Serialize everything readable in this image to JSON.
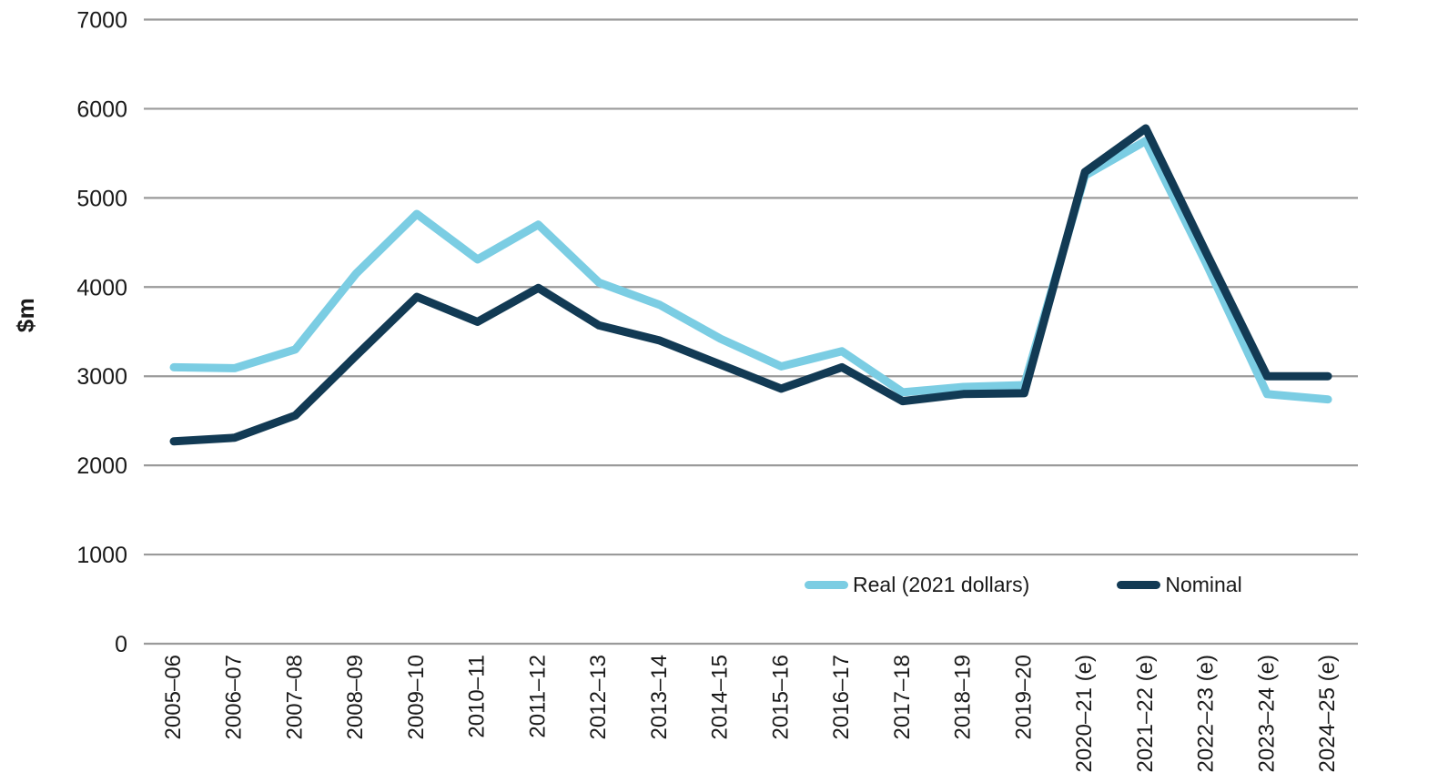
{
  "chart_data": {
    "type": "line",
    "title": "",
    "xlabel": "",
    "ylabel": "$m",
    "ylim": [
      0,
      7000
    ],
    "y_tick_interval": 1000,
    "yticks": [
      0,
      1000,
      2000,
      3000,
      4000,
      5000,
      6000,
      7000
    ],
    "y_tick_labels": [
      "0",
      "1000",
      "2000",
      "3000",
      "4000",
      "5000",
      "6000",
      "7000"
    ],
    "grid": "horizontal",
    "legend_position": "inside-bottom-right",
    "categories": [
      "2005–06",
      "2006–07",
      "2007–08",
      "2008–09",
      "2009–10",
      "2010–11",
      "2011–12",
      "2012–13",
      "2013–14",
      "2014–15",
      "2015–16",
      "2016–17",
      "2017–18",
      "2018–19",
      "2019–20",
      "2020–21 (e)",
      "2021–22 (e)",
      "2022–23 (e)",
      "2023–24 (e)",
      "2024–25 (e)"
    ],
    "series": [
      {
        "name": "Real (2021 dollars)",
        "color": "#7bcde3",
        "values": [
          3100,
          3090,
          3300,
          4150,
          4820,
          4310,
          4700,
          4050,
          3800,
          3420,
          3110,
          3280,
          2820,
          2880,
          2900,
          5250,
          5640,
          4260,
          2800,
          2740
        ]
      },
      {
        "name": "Nominal",
        "color": "#123a54",
        "values": [
          2270,
          2310,
          2560,
          3230,
          3890,
          3610,
          3990,
          3570,
          3400,
          3130,
          2860,
          3100,
          2720,
          2800,
          2810,
          5290,
          5780,
          4380,
          3000,
          3000
        ]
      }
    ],
    "colors": {
      "gridline": "#9a9a9a",
      "text": "#1a1a1a"
    }
  }
}
